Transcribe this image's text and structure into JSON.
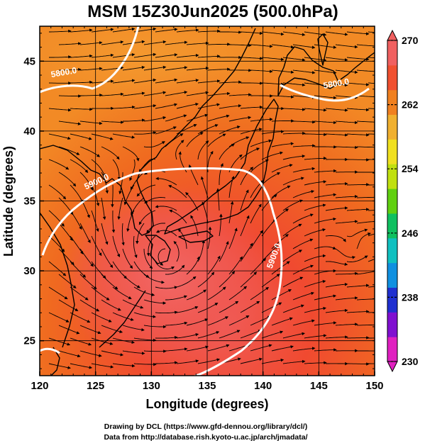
{
  "title": "MSM 15Z30Jun2025 (500.0hPa)",
  "x_axis": {
    "label": "Longitude (degrees)",
    "range": [
      120,
      150
    ],
    "ticks": [
      "120",
      "125",
      "130",
      "135",
      "140",
      "145",
      "150"
    ]
  },
  "y_axis": {
    "label": "Latitude  (degrees)",
    "range": [
      22.5,
      47.5
    ],
    "ticks": [
      "25",
      "30",
      "35",
      "40",
      "45"
    ]
  },
  "colorbar": {
    "min": 230,
    "max": 270,
    "ticks": [
      "230",
      "238",
      "246",
      "254",
      "262",
      "270"
    ],
    "colors": [
      "#e020c0",
      "#8010d0",
      "#2030d0",
      "#1090e0",
      "#10c0c0",
      "#10c060",
      "#60d010",
      "#c0e010",
      "#f0e020",
      "#f0b030",
      "#f08020",
      "#f05030",
      "#f06060"
    ]
  },
  "contours": [
    {
      "label": "5900.0",
      "lon": 125.2,
      "lat": 36.2
    },
    {
      "label": "5900.0",
      "lon": 141.2,
      "lat": 31.0
    },
    {
      "label": "5800.0",
      "lon": 122.2,
      "lat": 44.0
    },
    {
      "label": "5800.0",
      "lon": 146.6,
      "lat": 43.2
    }
  ],
  "credits": {
    "line1": "Drawing by DCL (https://www.gfd-dennou.org/library/dcl/)",
    "line2": "Data from http://database.rish.kyoto-u.ac.jp/arch/jmadata/"
  }
}
